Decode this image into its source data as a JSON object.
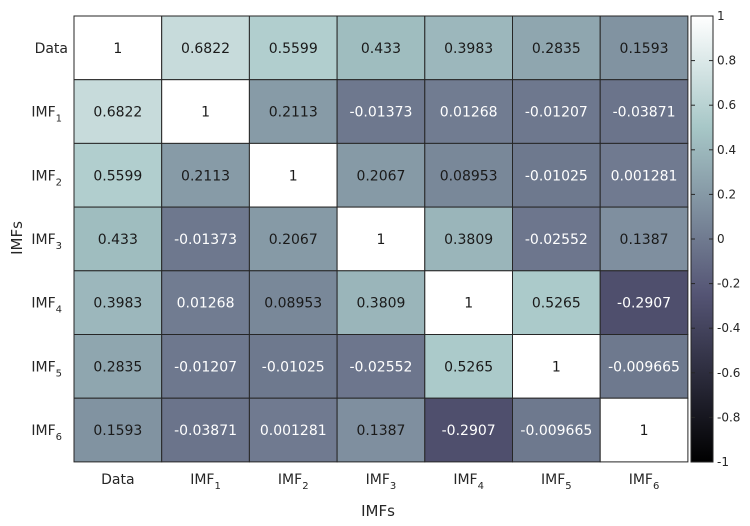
{
  "chart_data": {
    "type": "heatmap",
    "xlabel": "IMFs",
    "ylabel": "IMFs",
    "x_labels": [
      {
        "base": "Data",
        "sub": ""
      },
      {
        "base": "IMF",
        "sub": "1"
      },
      {
        "base": "IMF",
        "sub": "2"
      },
      {
        "base": "IMF",
        "sub": "3"
      },
      {
        "base": "IMF",
        "sub": "4"
      },
      {
        "base": "IMF",
        "sub": "5"
      },
      {
        "base": "IMF",
        "sub": "6"
      }
    ],
    "y_labels": [
      {
        "base": "Data",
        "sub": ""
      },
      {
        "base": "IMF",
        "sub": "1"
      },
      {
        "base": "IMF",
        "sub": "2"
      },
      {
        "base": "IMF",
        "sub": "3"
      },
      {
        "base": "IMF",
        "sub": "4"
      },
      {
        "base": "IMF",
        "sub": "5"
      },
      {
        "base": "IMF",
        "sub": "6"
      }
    ],
    "values": [
      [
        "1",
        "0.6822",
        "0.5599",
        "0.433",
        "0.3983",
        "0.2835",
        "0.1593"
      ],
      [
        "0.6822",
        "1",
        "0.2113",
        "-0.01373",
        "0.01268",
        "-0.01207",
        "-0.03871"
      ],
      [
        "0.5599",
        "0.2113",
        "1",
        "0.2067",
        "0.08953",
        "-0.01025",
        "0.001281"
      ],
      [
        "0.433",
        "-0.01373",
        "0.2067",
        "1",
        "0.3809",
        "-0.02552",
        "0.1387"
      ],
      [
        "0.3983",
        "0.01268",
        "0.08953",
        "0.3809",
        "1",
        "0.5265",
        "-0.2907"
      ],
      [
        "0.2835",
        "-0.01207",
        "-0.01025",
        "-0.02552",
        "0.5265",
        "1",
        "-0.009665"
      ],
      [
        "0.1593",
        "-0.03871",
        "0.001281",
        "0.1387",
        "-0.2907",
        "-0.009665",
        "1"
      ]
    ],
    "colorbar": {
      "range": [
        -1,
        1
      ],
      "ticks": [
        "1",
        "0.8",
        "0.6",
        "0.4",
        "0.2",
        "0",
        "-0.2",
        "-0.4",
        "-0.6",
        "-0.8",
        "-1"
      ],
      "colormap": "bone"
    }
  }
}
